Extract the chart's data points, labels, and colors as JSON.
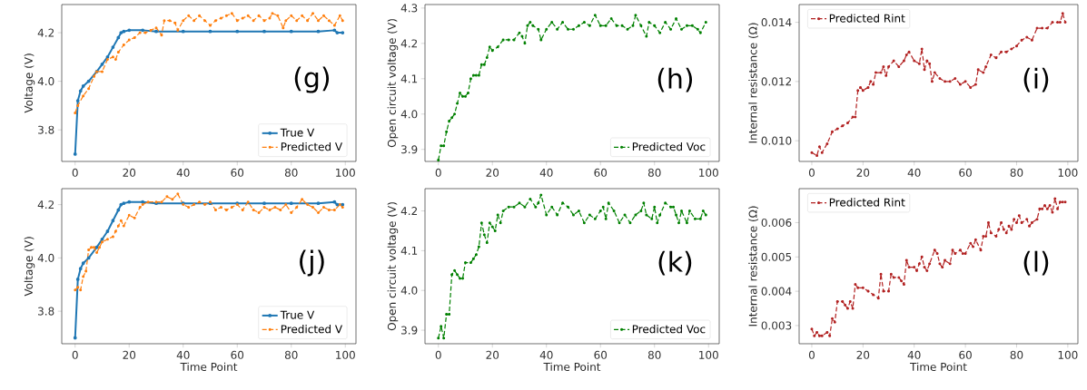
{
  "chart_data": [
    {
      "type": "line",
      "ylabel": "Voltage (V)",
      "annotations": [
        "(g)"
      ],
      "xlim": [
        -4.95,
        103.95
      ],
      "xticks": [
        0,
        20,
        40,
        60,
        80,
        100
      ],
      "ylim": [
        3.67,
        4.316
      ],
      "yticks": [
        3.8,
        {
          "value": 4.0,
          "label": "4.0"
        },
        4.2
      ],
      "legend": "bottom right",
      "grid": false,
      "series": [
        {
          "name": "True V",
          "color": "#1f77b4",
          "line_style": "solid",
          "marker": "circle",
          "x": [
            0,
            1,
            2,
            3,
            5,
            8,
            10,
            12,
            14,
            16,
            17,
            18,
            20,
            25,
            30,
            40,
            50,
            60,
            70,
            80,
            90,
            96,
            97,
            99
          ],
          "values": [
            3.7,
            3.92,
            3.96,
            3.98,
            4.0,
            4.04,
            4.07,
            4.1,
            4.14,
            4.18,
            4.2,
            4.205,
            4.21,
            4.21,
            4.205,
            4.205,
            4.205,
            4.205,
            4.205,
            4.205,
            4.205,
            4.21,
            4.2,
            4.2
          ]
        },
        {
          "name": "Predicted V",
          "color": "#ff7f0e",
          "line_style": "dashed",
          "marker": "circle",
          "x": [
            0,
            1,
            3,
            5,
            7,
            8,
            10,
            12,
            14,
            15,
            16,
            18,
            20,
            22,
            24,
            26,
            28,
            30,
            32,
            33,
            35,
            37,
            38,
            40,
            42,
            44,
            46,
            48,
            50,
            52,
            54,
            56,
            58,
            60,
            62,
            64,
            66,
            68,
            70,
            72,
            73,
            75,
            77,
            78,
            80,
            82,
            84,
            86,
            88,
            90,
            92,
            94,
            96,
            98,
            99
          ],
          "values": [
            3.87,
            3.9,
            3.94,
            3.97,
            4.02,
            4.04,
            4.04,
            4.09,
            4.1,
            4.09,
            4.12,
            4.15,
            4.17,
            4.18,
            4.2,
            4.2,
            4.21,
            4.22,
            4.19,
            4.25,
            4.25,
            4.24,
            4.21,
            4.25,
            4.27,
            4.25,
            4.27,
            4.25,
            4.23,
            4.25,
            4.26,
            4.27,
            4.28,
            4.25,
            4.26,
            4.27,
            4.25,
            4.27,
            4.25,
            4.26,
            4.28,
            4.27,
            4.22,
            4.25,
            4.27,
            4.25,
            4.27,
            4.25,
            4.28,
            4.25,
            4.27,
            4.25,
            4.23,
            4.27,
            4.25
          ]
        }
      ]
    },
    {
      "type": "line",
      "ylabel": "Open circuit voltage (V)",
      "annotations": [
        "(h)"
      ],
      "xlim": [
        -4.95,
        103.95
      ],
      "xticks": [
        0,
        20,
        40,
        60,
        80,
        100
      ],
      "ylim": [
        3.866,
        4.31
      ],
      "yticks": [
        3.9,
        {
          "value": 4.0,
          "label": "4.0"
        },
        4.1,
        4.2,
        4.3
      ],
      "legend": "bottom right",
      "grid": false,
      "series": [
        {
          "name": "Predicted Voc",
          "color": "#008000",
          "line_style": "dashed",
          "marker": "circle",
          "x": [
            0,
            1,
            2,
            3,
            4,
            5,
            6,
            7,
            8,
            9,
            10,
            11,
            12,
            13,
            14,
            15,
            16,
            17,
            18,
            19,
            20,
            22,
            24,
            26,
            28,
            30,
            31,
            32,
            33,
            34,
            35,
            37,
            38,
            40,
            42,
            44,
            46,
            48,
            50,
            52,
            54,
            56,
            58,
            60,
            62,
            64,
            66,
            68,
            70,
            72,
            73,
            75,
            77,
            78,
            80,
            82,
            84,
            86,
            88,
            90,
            92,
            94,
            96,
            97,
            99
          ],
          "values": [
            3.87,
            3.91,
            3.91,
            3.95,
            3.98,
            3.99,
            4.0,
            4.03,
            4.06,
            4.05,
            4.05,
            4.06,
            4.1,
            4.11,
            4.11,
            4.11,
            4.14,
            4.14,
            4.16,
            4.19,
            4.18,
            4.19,
            4.21,
            4.21,
            4.21,
            4.23,
            4.22,
            4.2,
            4.25,
            4.26,
            4.25,
            4.24,
            4.21,
            4.24,
            4.26,
            4.24,
            4.26,
            4.24,
            4.24,
            4.25,
            4.26,
            4.25,
            4.28,
            4.25,
            4.25,
            4.27,
            4.25,
            4.25,
            4.24,
            4.25,
            4.28,
            4.25,
            4.22,
            4.26,
            4.25,
            4.23,
            4.26,
            4.24,
            4.27,
            4.24,
            4.25,
            4.25,
            4.24,
            4.23,
            4.26
          ]
        }
      ]
    },
    {
      "type": "line",
      "ylabel": "Internal resistance (Ω)",
      "annotations": [
        "(i)"
      ],
      "xlim": [
        -4.95,
        103.95
      ],
      "xticks": [
        0,
        20,
        40,
        60,
        80,
        100
      ],
      "ylim": [
        0.0093,
        0.0146
      ],
      "yticks": [
        {
          "value": 0.01,
          "label": "0.010"
        },
        {
          "value": 0.012,
          "label": "0.012"
        },
        {
          "value": 0.014,
          "label": "0.014"
        }
      ],
      "legend": "top left",
      "grid": false,
      "series": [
        {
          "name": "Predicted Rint",
          "color": "#b22222",
          "line_style": "dashed",
          "marker": "circle",
          "x": [
            0,
            2,
            3,
            4,
            6,
            8,
            10,
            12,
            14,
            16,
            17,
            18,
            19,
            20,
            22,
            23,
            24,
            25,
            27,
            28,
            29,
            30,
            32,
            34,
            36,
            37,
            38,
            40,
            42,
            43,
            44,
            45,
            46,
            47,
            48,
            50,
            52,
            54,
            56,
            58,
            60,
            62,
            64,
            65,
            67,
            68,
            70,
            72,
            74,
            76,
            78,
            80,
            82,
            84,
            86,
            88,
            90,
            92,
            94,
            96,
            97,
            98,
            99
          ],
          "values": [
            0.0096,
            0.0095,
            0.0098,
            0.0096,
            0.0099,
            0.0103,
            0.0104,
            0.0105,
            0.0106,
            0.0108,
            0.0108,
            0.0117,
            0.0118,
            0.0117,
            0.0118,
            0.012,
            0.0119,
            0.0123,
            0.0123,
            0.0125,
            0.0122,
            0.0125,
            0.0127,
            0.0125,
            0.0127,
            0.0129,
            0.013,
            0.0127,
            0.0126,
            0.0131,
            0.0124,
            0.0127,
            0.0126,
            0.012,
            0.0123,
            0.0121,
            0.012,
            0.012,
            0.0121,
            0.0119,
            0.012,
            0.0118,
            0.0119,
            0.0124,
            0.0123,
            0.0125,
            0.0129,
            0.0128,
            0.013,
            0.013,
            0.0131,
            0.0132,
            0.0134,
            0.0135,
            0.0134,
            0.0138,
            0.0138,
            0.0138,
            0.014,
            0.014,
            0.014,
            0.0143,
            0.014
          ]
        }
      ]
    },
    {
      "type": "line",
      "xlabel": "Time Point",
      "ylabel": "Voltage (V)",
      "annotations": [
        "(j)"
      ],
      "xlim": [
        -4.95,
        103.95
      ],
      "xticks": [
        0,
        20,
        40,
        60,
        80,
        100
      ],
      "ylim": [
        3.678,
        4.26
      ],
      "yticks": [
        3.8,
        {
          "value": 4.0,
          "label": "4.0"
        },
        4.2
      ],
      "legend": "bottom right",
      "grid": false,
      "series": [
        {
          "name": "True V",
          "color": "#1f77b4",
          "line_style": "solid",
          "marker": "circle",
          "x": [
            0,
            1,
            2,
            3,
            5,
            8,
            10,
            12,
            14,
            16,
            17,
            18,
            20,
            25,
            30,
            40,
            50,
            60,
            70,
            80,
            90,
            96,
            97,
            99
          ],
          "values": [
            3.7,
            3.92,
            3.96,
            3.98,
            4.0,
            4.04,
            4.07,
            4.1,
            4.14,
            4.18,
            4.2,
            4.205,
            4.21,
            4.21,
            4.205,
            4.205,
            4.205,
            4.205,
            4.205,
            4.205,
            4.205,
            4.21,
            4.2,
            4.2
          ]
        },
        {
          "name": "Predicted V",
          "color": "#ff7f0e",
          "line_style": "dashed",
          "marker": "circle",
          "x": [
            0,
            1,
            2,
            3,
            4,
            5,
            6,
            7,
            8,
            9,
            10,
            12,
            14,
            15,
            16,
            17,
            18,
            20,
            22,
            24,
            25,
            27,
            30,
            32,
            34,
            36,
            38,
            40,
            42,
            44,
            46,
            48,
            50,
            52,
            54,
            56,
            58,
            60,
            62,
            64,
            66,
            68,
            70,
            72,
            74,
            76,
            78,
            80,
            82,
            84,
            86,
            88,
            90,
            92,
            94,
            96,
            98,
            99
          ],
          "values": [
            3.88,
            3.89,
            3.88,
            3.93,
            3.95,
            4.03,
            4.04,
            4.04,
            4.02,
            4.04,
            4.06,
            4.07,
            4.08,
            4.1,
            4.12,
            4.14,
            4.12,
            4.16,
            4.15,
            4.19,
            4.2,
            4.21,
            4.21,
            4.21,
            4.23,
            4.22,
            4.24,
            4.2,
            4.19,
            4.2,
            4.21,
            4.2,
            4.21,
            4.18,
            4.19,
            4.18,
            4.19,
            4.2,
            4.18,
            4.21,
            4.18,
            4.17,
            4.19,
            4.18,
            4.19,
            4.18,
            4.2,
            4.17,
            4.19,
            4.22,
            4.2,
            4.19,
            4.17,
            4.19,
            4.18,
            4.18,
            4.2,
            4.19
          ]
        }
      ]
    },
    {
      "type": "line",
      "xlabel": "Time Point",
      "ylabel": "Open circuit voltage (V)",
      "annotations": [
        "(k)"
      ],
      "xlim": [
        -4.95,
        103.95
      ],
      "xticks": [
        0,
        20,
        40,
        60,
        80,
        100
      ],
      "ylim": [
        3.866,
        4.256
      ],
      "yticks": [
        3.9,
        {
          "value": 4.0,
          "label": "4.0"
        },
        4.1,
        4.2
      ],
      "legend": "bottom right",
      "grid": false,
      "series": [
        {
          "name": "Predicted Voc",
          "color": "#008000",
          "line_style": "dashed",
          "marker": "circle",
          "x": [
            0,
            1,
            2,
            3,
            4,
            5,
            6,
            7,
            8,
            9,
            10,
            12,
            13,
            14,
            15,
            16,
            17,
            18,
            19,
            20,
            21,
            22,
            23,
            24,
            26,
            28,
            30,
            32,
            34,
            36,
            37,
            38,
            40,
            42,
            44,
            46,
            48,
            50,
            52,
            54,
            56,
            58,
            60,
            61,
            62,
            63,
            65,
            67,
            69,
            71,
            73,
            75,
            76,
            77,
            79,
            80,
            81,
            82,
            84,
            86,
            87,
            88,
            89,
            90,
            92,
            93,
            95,
            97,
            98,
            99
          ],
          "values": [
            3.88,
            3.91,
            3.88,
            3.94,
            3.94,
            4.04,
            4.05,
            4.04,
            4.03,
            4.03,
            4.07,
            4.07,
            4.08,
            4.09,
            4.11,
            4.17,
            4.14,
            4.12,
            4.17,
            4.16,
            4.15,
            4.19,
            4.17,
            4.2,
            4.21,
            4.21,
            4.22,
            4.21,
            4.23,
            4.21,
            4.22,
            4.24,
            4.19,
            4.21,
            4.19,
            4.22,
            4.21,
            4.19,
            4.2,
            4.17,
            4.19,
            4.18,
            4.2,
            4.21,
            4.18,
            4.22,
            4.2,
            4.17,
            4.19,
            4.17,
            4.19,
            4.2,
            4.22,
            4.19,
            4.18,
            4.21,
            4.17,
            4.19,
            4.22,
            4.21,
            4.21,
            4.19,
            4.17,
            4.2,
            4.17,
            4.2,
            4.18,
            4.18,
            4.2,
            4.19
          ]
        }
      ]
    },
    {
      "type": "line",
      "xlabel": "Time Point",
      "ylabel": "Internal resistance (Ω)",
      "annotations": [
        "(l)"
      ],
      "xlim": [
        -4.95,
        103.95
      ],
      "xticks": [
        0,
        20,
        40,
        60,
        80,
        100
      ],
      "ylim": [
        0.00247,
        0.00699
      ],
      "yticks": [
        {
          "value": 0.003,
          "label": "0.003"
        },
        {
          "value": 0.004,
          "label": "0.004"
        },
        {
          "value": 0.005,
          "label": "0.005"
        },
        {
          "value": 0.006,
          "label": "0.006"
        }
      ],
      "legend": "top left",
      "grid": false,
      "series": [
        {
          "name": "Predicted Rint",
          "color": "#b22222",
          "line_style": "dashed",
          "marker": "circle",
          "x": [
            0,
            1,
            2,
            3,
            4,
            6,
            7,
            8,
            9,
            10,
            12,
            13,
            14,
            15,
            16,
            17,
            18,
            20,
            22,
            24,
            26,
            27,
            28,
            30,
            31,
            32,
            34,
            35,
            36,
            37,
            38,
            40,
            41,
            42,
            43,
            44,
            45,
            46,
            48,
            49,
            50,
            51,
            52,
            54,
            55,
            56,
            58,
            59,
            60,
            62,
            63,
            64,
            66,
            67,
            68,
            69,
            70,
            72,
            73,
            74,
            75,
            76,
            77,
            78,
            79,
            80,
            81,
            82,
            84,
            85,
            86,
            88,
            89,
            90,
            91,
            92,
            93,
            94,
            95,
            96,
            97,
            98,
            99
          ],
          "values": [
            0.0029,
            0.0027,
            0.0028,
            0.0027,
            0.0027,
            0.0028,
            0.0027,
            0.0032,
            0.0031,
            0.0037,
            0.0037,
            0.0036,
            0.0035,
            0.0037,
            0.0035,
            0.0042,
            0.0041,
            0.0041,
            0.004,
            0.0039,
            0.0038,
            0.0045,
            0.004,
            0.004,
            0.0045,
            0.0044,
            0.0044,
            0.0043,
            0.0042,
            0.0049,
            0.0047,
            0.0047,
            0.0046,
            0.0048,
            0.005,
            0.0047,
            0.0046,
            0.0048,
            0.0052,
            0.0051,
            0.0048,
            0.0047,
            0.0049,
            0.0048,
            0.0052,
            0.0051,
            0.0052,
            0.0051,
            0.0051,
            0.0054,
            0.0053,
            0.0055,
            0.0052,
            0.0056,
            0.0056,
            0.006,
            0.0057,
            0.0056,
            0.0058,
            0.006,
            0.0058,
            0.0057,
            0.0059,
            0.0058,
            0.0061,
            0.006,
            0.0062,
            0.006,
            0.0061,
            0.0059,
            0.006,
            0.0061,
            0.0064,
            0.0064,
            0.0065,
            0.0064,
            0.0065,
            0.0063,
            0.0067,
            0.0064,
            0.0066,
            0.0066,
            0.0066
          ]
        }
      ]
    }
  ]
}
